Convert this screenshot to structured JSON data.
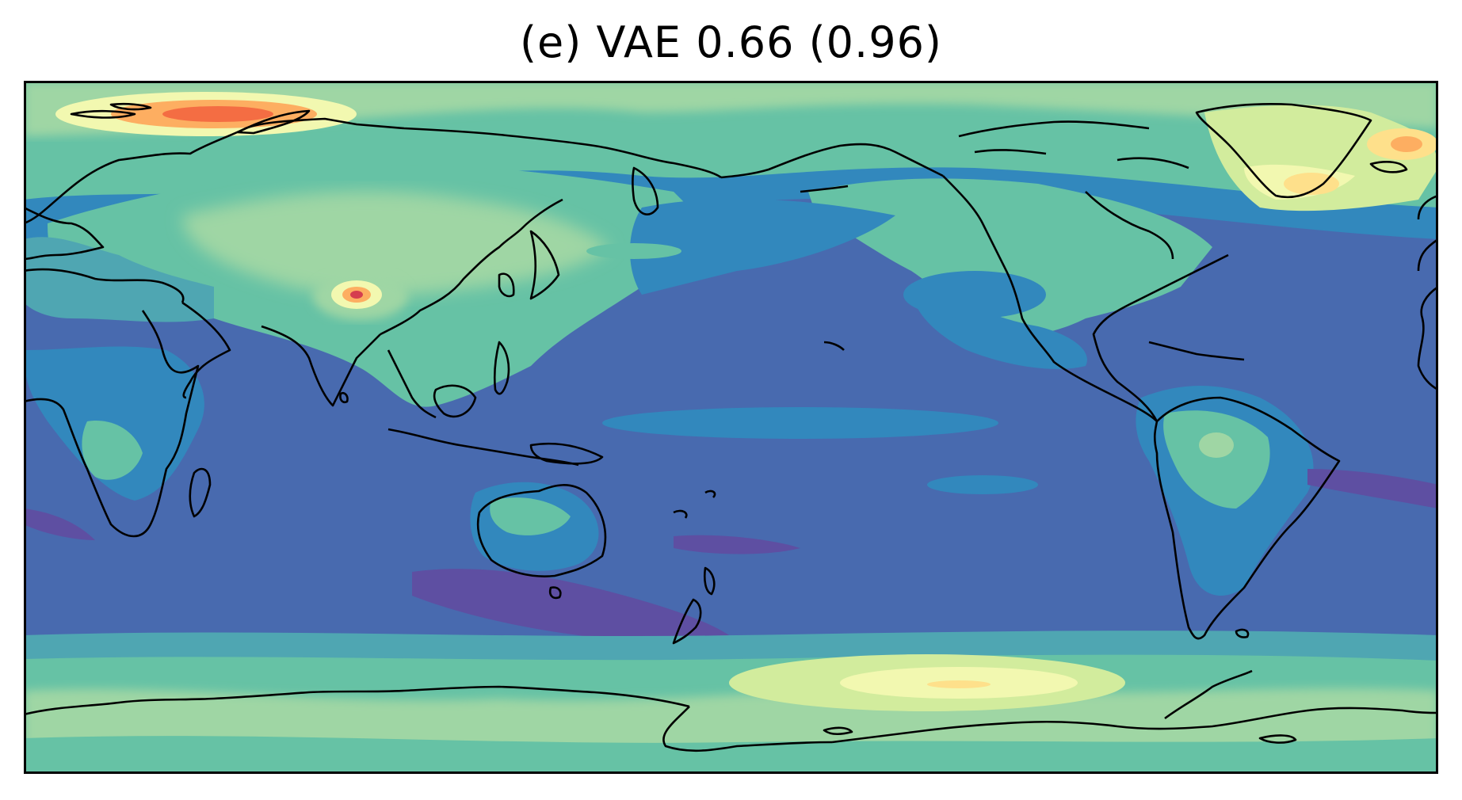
{
  "figure": {
    "title": "(e) VAE  0.66 (0.96)"
  },
  "map": {
    "projection": "plate-carree",
    "central_longitude": 180,
    "colormap": "Spectral_r",
    "levels": [
      "#5e4fa2",
      "#486aaf",
      "#3288bd",
      "#4fa6b2",
      "#66c2a5",
      "#9fd6a4",
      "#d2ec9d",
      "#f2f8b0",
      "#fee08b",
      "#fdae61",
      "#f46d43",
      "#d53e4f"
    ],
    "coastline_color": "#000000",
    "frame_color": "#000000"
  }
}
